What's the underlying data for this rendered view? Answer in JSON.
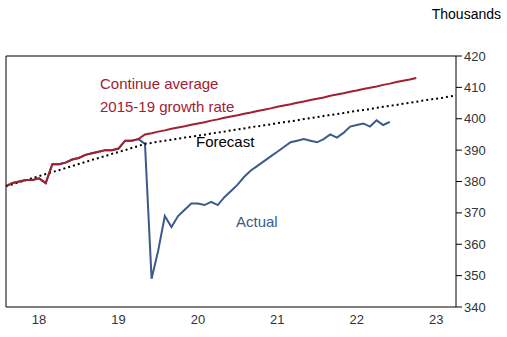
{
  "chart_data": {
    "type": "line",
    "y_label": "Thousands",
    "grid": false,
    "ylim": [
      340,
      420
    ],
    "yticks": [
      340,
      350,
      360,
      370,
      380,
      390,
      400,
      410,
      420
    ],
    "categories": [
      null,
      null,
      null,
      null,
      null,
      "18",
      null,
      null,
      null,
      null,
      null,
      null,
      null,
      null,
      null,
      null,
      null,
      "19",
      null,
      null,
      null,
      null,
      null,
      null,
      null,
      null,
      null,
      null,
      null,
      "20",
      null,
      null,
      null,
      null,
      null,
      null,
      null,
      null,
      null,
      null,
      null,
      "21",
      null,
      null,
      null,
      null,
      null,
      null,
      null,
      null,
      null,
      null,
      null,
      "22",
      null,
      null,
      null,
      null,
      null,
      null,
      null,
      null,
      null,
      null,
      null,
      "23",
      null,
      null,
      null
    ],
    "series": [
      {
        "name": "Actual",
        "color": "#3d5a8a",
        "line_style": "solid",
        "values": [
          378.5,
          379.5,
          380,
          380.5,
          380.5,
          381,
          379.5,
          385.5,
          385.5,
          386,
          387,
          387.5,
          388.5,
          389,
          389.5,
          390,
          390,
          390.5,
          393,
          393,
          393.5,
          392,
          349,
          358,
          369,
          365.5,
          369,
          371,
          373,
          373,
          372.5,
          373.5,
          372.5,
          375,
          377,
          379,
          381.5,
          383.5,
          385,
          386.5,
          388,
          389.5,
          391,
          392.5,
          393,
          393.5,
          393,
          392.5,
          393.5,
          395,
          394,
          395.5,
          397.5,
          398,
          398.5,
          397.5,
          399.5,
          398,
          399,
          null,
          null,
          null,
          null,
          null,
          null,
          null,
          null,
          null,
          null
        ]
      },
      {
        "name": "Forecast",
        "color": "#000000",
        "line_style": "dotted",
        "values": [
          378.5,
          379.1,
          379.8,
          380.4,
          381.1,
          381.7,
          382.4,
          383,
          383.6,
          384.3,
          384.9,
          385.6,
          386.2,
          386.9,
          387.5,
          388.1,
          388.8,
          389.4,
          390,
          390.7,
          391.3,
          392,
          392.3,
          392.7,
          393,
          393.3,
          393.6,
          394,
          394.3,
          394.6,
          394.9,
          395.3,
          395.6,
          395.9,
          396.3,
          396.6,
          396.9,
          397.3,
          397.6,
          397.9,
          398.2,
          398.6,
          398.9,
          399.2,
          399.5,
          399.9,
          400.2,
          400.5,
          400.9,
          401.2,
          401.5,
          401.8,
          402.2,
          402.5,
          402.8,
          403.1,
          403.5,
          403.8,
          404.1,
          404.4,
          404.8,
          405.1,
          405.4,
          405.8,
          406.1,
          406.4,
          406.7,
          407.1,
          407.4
        ]
      },
      {
        "name": "Continue average\n2015-19 growth rate",
        "color": "#a3202e",
        "line_style": "solid",
        "values": [
          378.5,
          379.5,
          380,
          380.5,
          380.5,
          381,
          379.5,
          385.5,
          385.5,
          386,
          387,
          387.5,
          388.5,
          389,
          389.5,
          390,
          390,
          390.5,
          393,
          393,
          393.5,
          395,
          395.4,
          395.9,
          396.3,
          396.8,
          397.2,
          397.6,
          398.1,
          398.5,
          398.9,
          399.4,
          399.8,
          400.3,
          400.7,
          401.1,
          401.6,
          402,
          402.5,
          402.9,
          403.3,
          403.8,
          404.2,
          404.6,
          405.1,
          405.5,
          406,
          406.4,
          406.8,
          407.3,
          407.7,
          408.1,
          408.6,
          409,
          409.5,
          409.9,
          410.3,
          410.8,
          411.2,
          411.7,
          412.1,
          412.5,
          413,
          null,
          null,
          null,
          null,
          null,
          null
        ]
      }
    ]
  }
}
